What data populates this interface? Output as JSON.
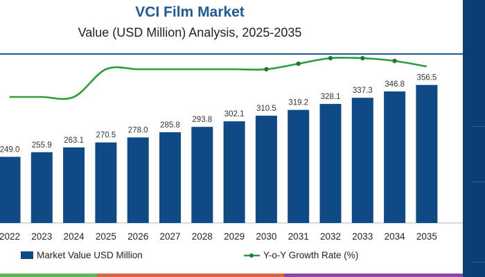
{
  "header": {
    "title": "VCI Film Market",
    "subtitle": "Value (USD Million) Analysis, 2025-2035"
  },
  "colors": {
    "bar": "#0d4a86",
    "line": "#2a9d3a",
    "title": "#1f5a98",
    "panel": "#0d3d75"
  },
  "chart_data": {
    "type": "bar",
    "categories": [
      "2022",
      "2023",
      "2024",
      "2025",
      "2026",
      "2027",
      "2028",
      "2029",
      "2030",
      "2031",
      "2032",
      "2033",
      "2034",
      "2035"
    ],
    "series": [
      {
        "name": "Market Value USD Million",
        "type": "bar",
        "values": [
          249.0,
          255.9,
          263.1,
          270.5,
          278.0,
          285.8,
          293.8,
          302.1,
          310.5,
          319.2,
          328.1,
          337.3,
          346.8,
          356.5
        ],
        "labels": [
          "249.0",
          "255.9",
          "263.1",
          "270.5",
          "278.0",
          "285.8",
          "293.8",
          "302.1",
          "310.5",
          "319.2",
          "328.1",
          "337.3",
          "346.8",
          "356.5"
        ]
      },
      {
        "name": "Y-o-Y Growth Rate (%)",
        "type": "line",
        "values": [
          2.7,
          2.7,
          2.7,
          2.8,
          2.8,
          2.8,
          2.8,
          2.8,
          2.8,
          2.82,
          2.84,
          2.84,
          2.83,
          2.81
        ],
        "markers": [
          8,
          9,
          10,
          11,
          12
        ]
      }
    ],
    "legend": [
      "Market Value USD Million",
      "Y-o-Y Growth Rate (%)"
    ],
    "legend_position": "bottom",
    "grid": false
  },
  "bottom_stripes": [
    "#5cb85c",
    "#d9663c",
    "#8e44ad"
  ]
}
